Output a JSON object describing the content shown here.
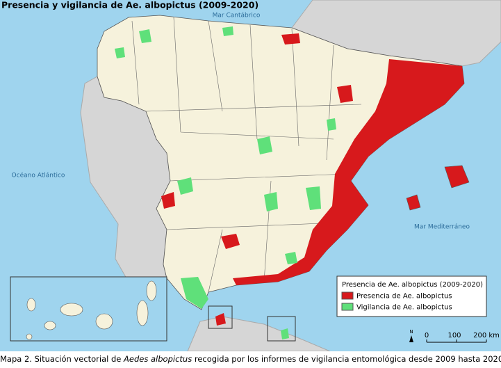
{
  "map": {
    "title": "Presencia y vigilancia de Ae. albopictus (2009-2020)",
    "sea_labels": {
      "cantabrico": "Mar Cantábrico",
      "atlantico": "Océano Atlántico",
      "mediterraneo": "Mar Mediterráneo"
    },
    "legend": {
      "title": "Presencia de Ae. albopictus (2009-2020)",
      "items": [
        {
          "label": "Presencia de Ae. albopictus",
          "color": "#d7191c"
        },
        {
          "label": "Vigilancia de Ae. albopictus",
          "color": "#5fe07a"
        }
      ]
    },
    "north": "N",
    "scale_labels": [
      "0",
      "100",
      "200 km"
    ]
  },
  "caption": {
    "before": "Mapa 2. Situación vectorial de ",
    "italic": "Aedes albopictus",
    "after": " recogida por los informes de vigilancia entomológica desde 2009 hasta 2020."
  }
}
